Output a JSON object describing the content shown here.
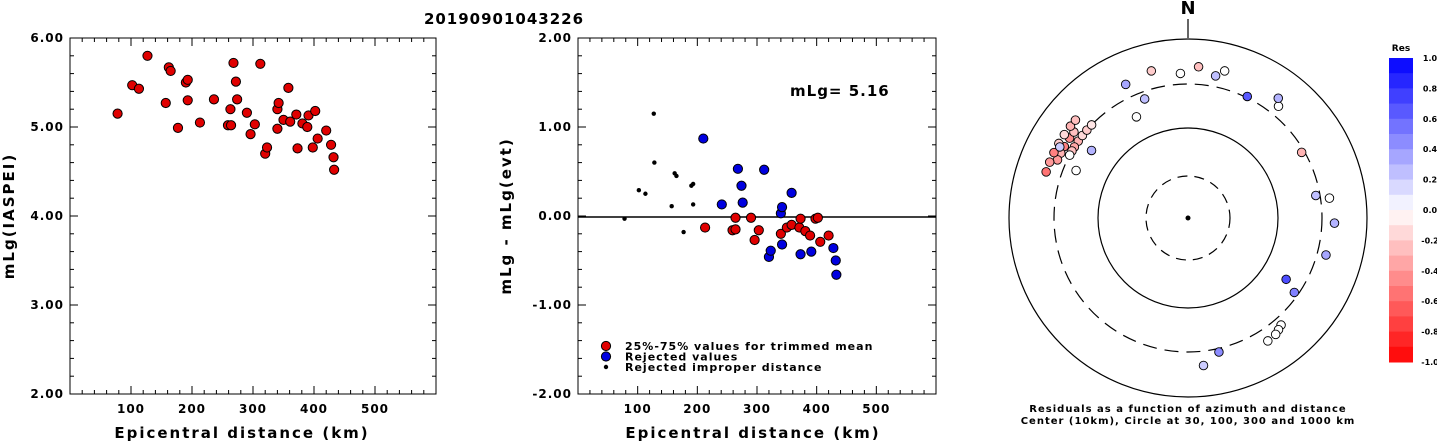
{
  "title": "20190901043226",
  "chart_data": [
    {
      "type": "scatter",
      "xlabel": "Epicentral distance (km)",
      "ylabel": "mLg(IASPEI)",
      "xlim": [
        0,
        600
      ],
      "ylim": [
        2.0,
        6.0
      ],
      "xticks": [
        "100",
        "200",
        "300",
        "400",
        "500"
      ],
      "yticks": [
        "2.00",
        "3.00",
        "4.00",
        "5.00",
        "6.00"
      ],
      "series": [
        {
          "color": "#e00000",
          "points": [
            [
              78,
              5.15
            ],
            [
              102,
              5.47
            ],
            [
              113,
              5.43
            ],
            [
              127,
              5.8
            ],
            [
              157,
              5.27
            ],
            [
              162,
              5.67
            ],
            [
              165,
              5.63
            ],
            [
              177,
              4.99
            ],
            [
              190,
              5.5
            ],
            [
              193,
              5.53
            ],
            [
              193,
              5.3
            ],
            [
              213,
              5.05
            ],
            [
              236,
              5.31
            ],
            [
              259,
              5.02
            ],
            [
              263,
              5.2
            ],
            [
              264,
              5.02
            ],
            [
              268,
              5.72
            ],
            [
              272,
              5.51
            ],
            [
              274,
              5.31
            ],
            [
              290,
              5.16
            ],
            [
              296,
              4.92
            ],
            [
              303,
              5.03
            ],
            [
              312,
              5.71
            ],
            [
              320,
              4.7
            ],
            [
              323,
              4.77
            ],
            [
              340,
              5.2
            ],
            [
              340,
              4.98
            ],
            [
              342,
              5.27
            ],
            [
              350,
              5.08
            ],
            [
              358,
              5.44
            ],
            [
              361,
              5.06
            ],
            [
              371,
              5.14
            ],
            [
              373,
              4.76
            ],
            [
              381,
              5.04
            ],
            [
              389,
              5.0
            ],
            [
              391,
              5.13
            ],
            [
              398,
              4.77
            ],
            [
              402,
              5.18
            ],
            [
              406,
              4.87
            ],
            [
              420,
              4.96
            ],
            [
              428,
              4.8
            ],
            [
              432,
              4.66
            ],
            [
              433,
              4.52
            ]
          ]
        }
      ]
    },
    {
      "type": "scatter",
      "xlabel": "Epicentral distance (km)",
      "ylabel": "mLg - mLg(evt)",
      "xlim": [
        0,
        600
      ],
      "ylim": [
        -2.0,
        2.0
      ],
      "xticks": [
        "100",
        "200",
        "300",
        "400",
        "500"
      ],
      "yticks": [
        "-2.00",
        "-1.00",
        "0.00",
        "1.00",
        "2.00"
      ],
      "annotation": "mLg= 5.16",
      "legend": [
        {
          "label": "25%-75% values for trimmed mean",
          "color": "#e00000",
          "marker": "circle"
        },
        {
          "label": "Rejected values",
          "color": "#0000e0",
          "marker": "circle"
        },
        {
          "label": "Rejected improper distance",
          "color": "#000000",
          "marker": "dot"
        }
      ],
      "series": [
        {
          "name": "25%-75% values for trimmed mean",
          "color": "#e00000",
          "points": [
            [
              213,
              -0.13
            ],
            [
              259,
              -0.16
            ],
            [
              264,
              -0.15
            ],
            [
              264,
              -0.02
            ],
            [
              290,
              -0.02
            ],
            [
              296,
              -0.27
            ],
            [
              303,
              -0.16
            ],
            [
              340,
              -0.2
            ],
            [
              350,
              -0.13
            ],
            [
              358,
              -0.1
            ],
            [
              371,
              -0.13
            ],
            [
              373,
              -0.03
            ],
            [
              381,
              -0.17
            ],
            [
              389,
              -0.22
            ],
            [
              398,
              -0.03
            ],
            [
              402,
              -0.02
            ],
            [
              406,
              -0.29
            ],
            [
              420,
              -0.22
            ]
          ]
        },
        {
          "name": "Rejected values",
          "color": "#0000e0",
          "points": [
            [
              210,
              0.87
            ],
            [
              241,
              0.13
            ],
            [
              268,
              0.53
            ],
            [
              274,
              0.34
            ],
            [
              276,
              0.15
            ],
            [
              312,
              0.52
            ],
            [
              320,
              -0.46
            ],
            [
              323,
              -0.39
            ],
            [
              340,
              0.03
            ],
            [
              342,
              0.1
            ],
            [
              342,
              -0.32
            ],
            [
              358,
              0.26
            ],
            [
              373,
              -0.43
            ],
            [
              391,
              -0.4
            ],
            [
              428,
              -0.36
            ],
            [
              432,
              -0.5
            ],
            [
              433,
              -0.66
            ]
          ]
        },
        {
          "name": "Rejected improper distance",
          "color": "#000000",
          "points": [
            [
              78,
              -0.03
            ],
            [
              102,
              0.29
            ],
            [
              113,
              0.25
            ],
            [
              127,
              1.15
            ],
            [
              128,
              0.6
            ],
            [
              157,
              0.11
            ],
            [
              162,
              0.48
            ],
            [
              165,
              0.45
            ],
            [
              177,
              -0.18
            ],
            [
              190,
              0.34
            ],
            [
              193,
              0.36
            ],
            [
              193,
              0.13
            ]
          ]
        }
      ]
    },
    {
      "type": "polar",
      "north_label": "N",
      "caption_line1": "Residuals as a function of azimuth and distance",
      "caption_line2": "Center (10km), Circle at 30, 100, 300 and 1000 km",
      "colorbar": {
        "title": "Res",
        "labels": [
          "1.0",
          "0.8",
          "0.6",
          "0.4",
          "0.2",
          "0.0",
          "-0.2",
          "-0.4",
          "-0.6",
          "-0.8",
          "-1.0"
        ],
        "positive_color": "#0000ff",
        "negative_color": "#ff0000"
      },
      "stations": [
        {
          "az": -55,
          "dist": 300,
          "res": -0.3
        },
        {
          "az": -58,
          "dist": 300,
          "res": -0.35
        },
        {
          "az": -52,
          "dist": 300,
          "res": -0.15
        },
        {
          "az": -49,
          "dist": 300,
          "res": -0.2
        },
        {
          "az": -60,
          "dist": 300,
          "res": -0.25
        },
        {
          "az": -46,
          "dist": 300,
          "res": -0.1
        },
        {
          "az": -56,
          "dist": 380,
          "res": -0.45
        },
        {
          "az": -60,
          "dist": 380,
          "res": -0.5
        },
        {
          "az": -63,
          "dist": 380,
          "res": -0.3
        },
        {
          "az": -53,
          "dist": 380,
          "res": -0.25
        },
        {
          "az": -66,
          "dist": 380,
          "res": -0.4
        },
        {
          "az": -64,
          "dist": 450,
          "res": -0.5
        },
        {
          "az": -68,
          "dist": 450,
          "res": -0.4
        },
        {
          "az": -72,
          "dist": 450,
          "res": -0.55
        },
        {
          "az": -60,
          "dist": 450,
          "res": -0.2
        },
        {
          "az": -56,
          "dist": 450,
          "res": -0.15
        },
        {
          "az": -52,
          "dist": 450,
          "res": -0.3
        },
        {
          "az": -49,
          "dist": 450,
          "res": -0.25
        },
        {
          "az": -61,
          "dist": 420,
          "res": 0.2
        },
        {
          "az": -62,
          "dist": 300,
          "res": 0.0
        },
        {
          "az": -67,
          "dist": 220,
          "res": 0.0
        },
        {
          "az": -14,
          "dist": 480,
          "res": -0.2
        },
        {
          "az": 4,
          "dist": 480,
          "res": -0.25
        },
        {
          "az": 14,
          "dist": 480,
          "res": 0.0
        },
        {
          "az": -3,
          "dist": 400,
          "res": 0.0
        },
        {
          "az": 11,
          "dist": 400,
          "res": 0.25
        },
        {
          "az": -25,
          "dist": 430,
          "res": 0.35
        },
        {
          "az": -55,
          "dist": 200,
          "res": 0.3
        },
        {
          "az": -27,
          "dist": 180,
          "res": 0.0
        },
        {
          "az": -20,
          "dist": 250,
          "res": 0.25
        },
        {
          "az": 26,
          "dist": 310,
          "res": 0.65
        },
        {
          "az": 39,
          "dist": 390,
          "res": 0.0
        },
        {
          "az": 37,
          "dist": 460,
          "res": 0.3
        },
        {
          "az": 60,
          "dist": 280,
          "res": -0.3
        },
        {
          "az": 80,
          "dist": 270,
          "res": 0.25
        },
        {
          "az": 82,
          "dist": 380,
          "res": 0.0
        },
        {
          "az": 92,
          "dist": 420,
          "res": 0.3
        },
        {
          "az": 105,
          "dist": 380,
          "res": 0.35
        },
        {
          "az": 122,
          "dist": 190,
          "res": 0.7
        },
        {
          "az": 125,
          "dist": 270,
          "res": 0.5
        },
        {
          "az": 139,
          "dist": 370,
          "res": 0.0
        },
        {
          "az": 141,
          "dist": 390,
          "res": 0.0
        },
        {
          "az": 143,
          "dist": 410,
          "res": 0.0
        },
        {
          "az": 147,
          "dist": 420,
          "res": 0.0
        },
        {
          "az": 167,
          "dist": 330,
          "res": 0.45
        },
        {
          "az": 174,
          "dist": 440,
          "res": 0.2
        }
      ]
    }
  ]
}
